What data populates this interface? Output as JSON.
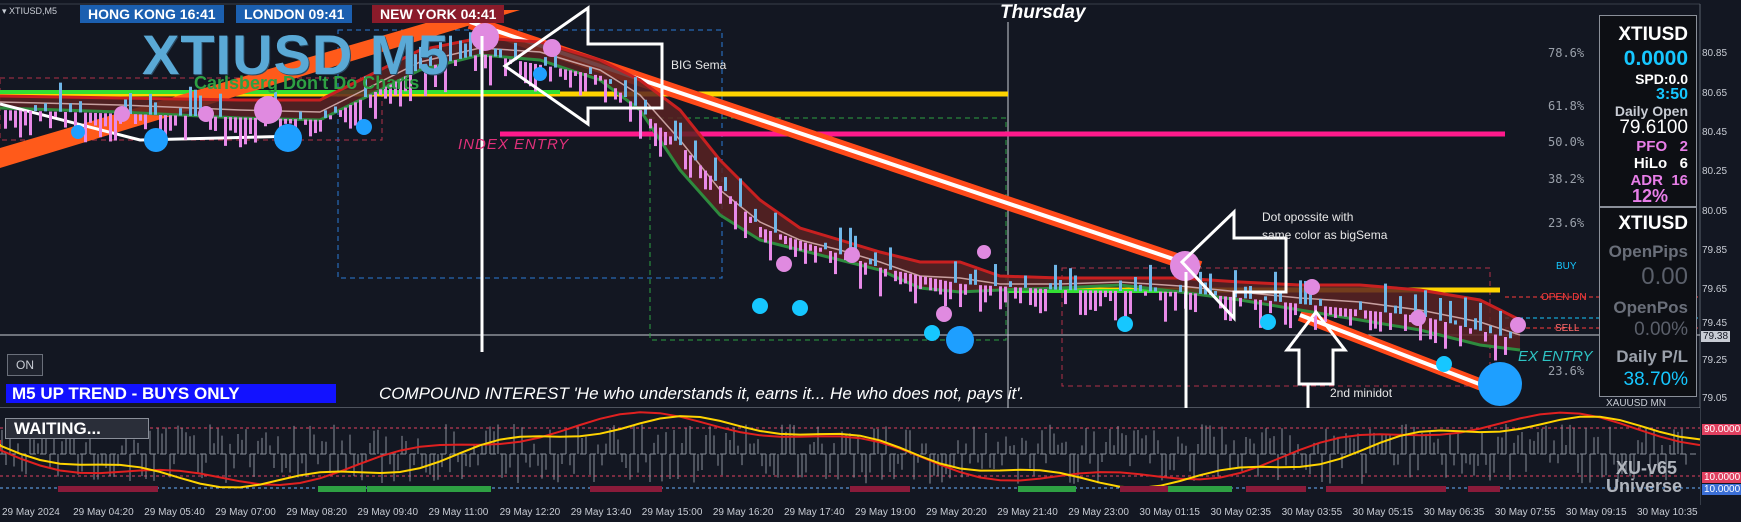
{
  "symbol_label": "XTIUSD,M5",
  "sessions": [
    {
      "label": "HONG KONG 16:41",
      "color": "#1b5fb0"
    },
    {
      "label": "LONDON  09:41",
      "color": "#1b5fb0"
    },
    {
      "label": "NEW YORK  04:41",
      "color": "#8a1b2a"
    }
  ],
  "day_label": "Thursday",
  "title": "XTIUSD M5",
  "subtitle": "Carlsberg Don't Do Charts",
  "annotations": {
    "big_sema": "BIG Sema",
    "index_entry": "INDEX ENTRY",
    "dot_opposite_line1": "Dot opossite with",
    "dot_opposite_line2": "same color as bigSema",
    "second_minidot": "2nd minidot",
    "ex_entry": "EX ENTRY"
  },
  "levels": {
    "buy": "BUY",
    "open_dn": "OPEN DN",
    "sell": "SELL"
  },
  "fib_levels": [
    "78.6%",
    "61.8%",
    "50.0%",
    "38.2%",
    "23.6%",
    "23.6%"
  ],
  "on_button": "ON",
  "trend_banner": "M5  UP TREND - BUYS ONLY",
  "quote": "COMPOUND INTEREST 'He who understands it, earns it... He who does not, pays it'.",
  "waiting_label": "WAITING...",
  "panel1": {
    "symbol": "XTIUSD",
    "price": "0.0000",
    "spread": "SPD:0.0",
    "timer": "3:50",
    "daily_open_label": "Daily Open",
    "daily_open": "79.6100",
    "pfo_label": "PFO",
    "pfo": "2",
    "hilo_label": "HiLo",
    "hilo": "6",
    "adr_label": "ADR",
    "adr": "16",
    "pct": "12%"
  },
  "panel2": {
    "symbol": "XTIUSD",
    "open_pips_label": "OpenPips",
    "open_pips": "0.00",
    "open_pos_label": "OpenPos",
    "open_pos": "0.00%",
    "daily_pl_label": "Daily P/L",
    "daily_pl": "38.70%"
  },
  "bottom_right_label": "XAUUSD  MN",
  "indicator_label": "XU-v65",
  "universe_label": "Universe",
  "y_axis": [
    "80.85",
    "80.65",
    "80.45",
    "80.25",
    "80.05",
    "79.85",
    "79.65",
    "79.45",
    "79.38",
    "79.25",
    "79.05"
  ],
  "osc_axis": [
    "90.0000",
    "10.0000",
    "10.0000"
  ],
  "x_axis": [
    "29 May 2024",
    "29 May 04:20",
    "29 May 05:40",
    "29 May 07:00",
    "29 May 08:20",
    "29 May 09:40",
    "29 May 11:00",
    "29 May 12:20",
    "29 May 13:40",
    "29 May 15:00",
    "29 May 16:20",
    "29 May 17:40",
    "29 May 19:00",
    "29 May 20:20",
    "29 May 21:40",
    "29 May 23:00",
    "30 May 01:15",
    "30 May 02:35",
    "30 May 03:55",
    "30 May 05:15",
    "30 May 06:35",
    "30 May 07:55",
    "30 May 09:15",
    "30 May 10:35"
  ],
  "colors": {
    "background": "#131722",
    "yellow": "#ffd400",
    "magenta": "#ff1a8c",
    "orange": "#ff5a1a",
    "green": "#33e033",
    "cyan": "#16c7ff"
  }
}
